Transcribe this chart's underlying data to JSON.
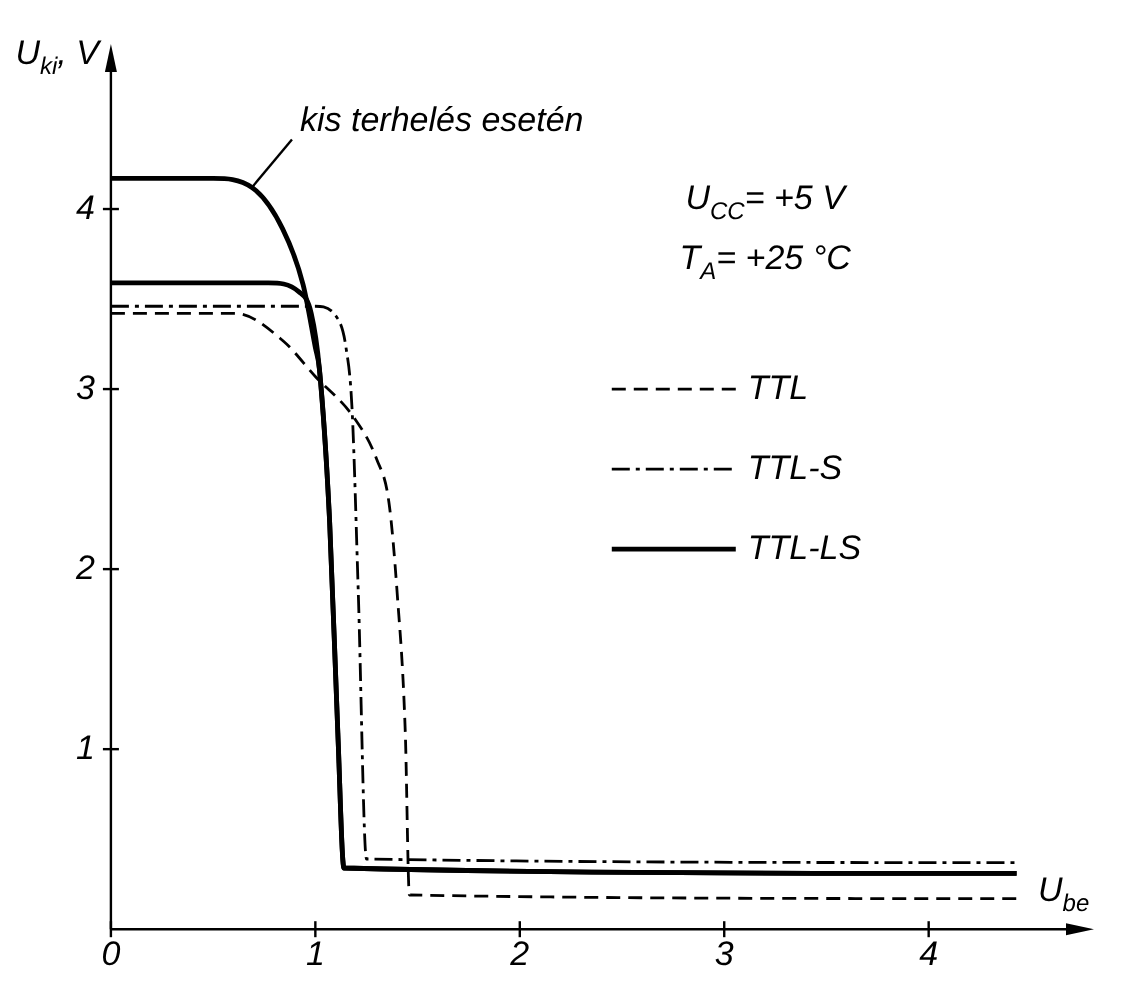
{
  "chart_data": {
    "type": "line",
    "xlabel": "U$_{be}$",
    "ylabel": "U$_{ki}$, V",
    "xlim": [
      0,
      4.75
    ],
    "ylim": [
      0,
      4.85
    ],
    "xticks": [
      0,
      1,
      2,
      3,
      4
    ],
    "yticks": [
      1,
      2,
      3,
      4
    ],
    "grid": false,
    "legend": "right",
    "marker": "none",
    "annotations": [
      {
        "text": "kis terhelés esetén",
        "x": 0.69,
        "y": 4.12
      },
      "U$_{CC}$= +5 V",
      "T$_{A}$= +25 °C"
    ],
    "series": [
      {
        "name": "TTL",
        "color": "#000000",
        "line_style": "dashed",
        "x": [
          0,
          0.61,
          0.84,
          1.0,
          1.19,
          1.3,
          1.36,
          1.4,
          1.44,
          1.46,
          4.43
        ],
        "values": [
          3.42,
          3.42,
          3.27,
          3.07,
          2.84,
          2.61,
          2.37,
          1.87,
          1.09,
          0.19,
          0.17
        ]
      },
      {
        "name": "TTL-S",
        "color": "#000000",
        "line_style": "dashdot",
        "x": [
          0,
          1.0,
          1.11,
          1.15,
          1.18,
          1.21,
          1.25,
          4.43
        ],
        "values": [
          3.46,
          3.46,
          3.39,
          3.23,
          2.88,
          1.87,
          0.39,
          0.37
        ]
      },
      {
        "name": "TTL-LS",
        "color": "#000000",
        "line_style": "solid",
        "x": [
          0,
          0.77,
          0.92,
          0.98,
          1.02,
          1.07,
          1.11,
          1.14,
          4.43
        ],
        "values": [
          3.59,
          3.59,
          3.54,
          3.42,
          3.11,
          2.26,
          1.09,
          0.34,
          0.31
        ]
      },
      {
        "color": "#000000",
        "line_style": "solid",
        "x": [
          0,
          0.5,
          0.69,
          0.84,
          0.94,
          1.0,
          1.02,
          1.07,
          1.11,
          1.14,
          4.43
        ],
        "values": [
          4.17,
          4.17,
          4.12,
          3.89,
          3.58,
          3.23,
          3.11,
          2.26,
          1.09,
          0.34,
          0.31
        ]
      }
    ]
  }
}
